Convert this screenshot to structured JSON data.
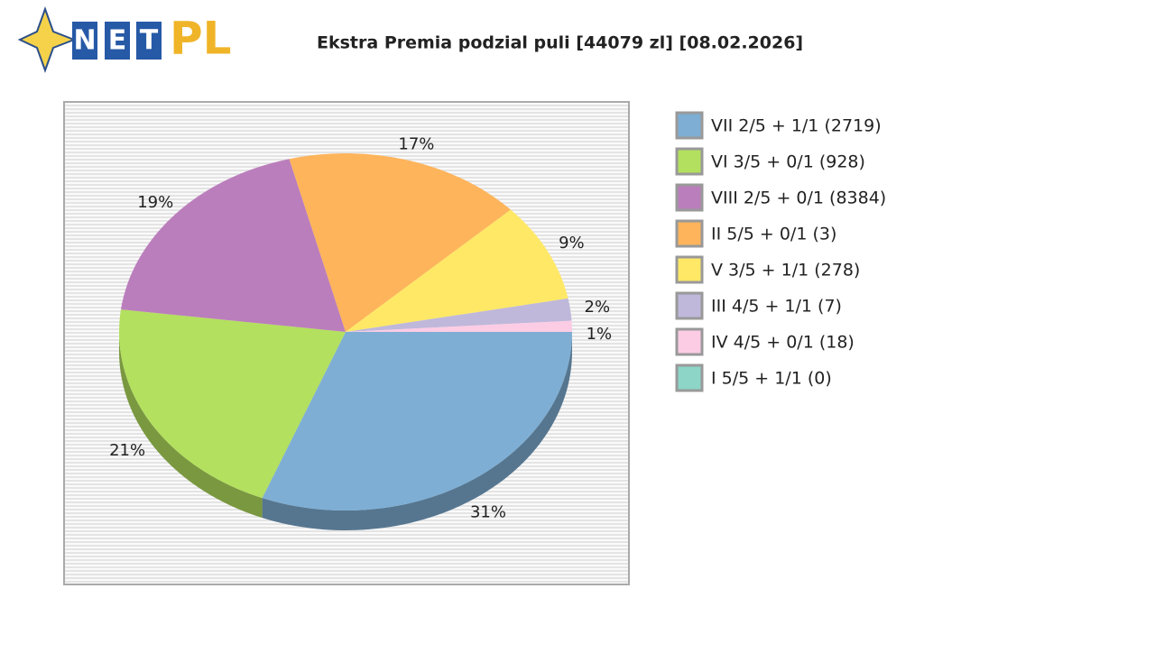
{
  "logo": {
    "letters": [
      "N",
      "E",
      "T"
    ],
    "suffix": "PL"
  },
  "chart_data": {
    "type": "pie",
    "title": "Ekstra Premia podzial puli [44079 zl] [08.02.2026]",
    "categories": [
      "VII 2/5 + 1/1 (2719)",
      "VI 3/5 + 0/1 (928)",
      "VIII 2/5 + 0/1 (8384)",
      "II 5/5 + 0/1 (3)",
      "V 3/5 + 1/1 (278)",
      "III 4/5 + 1/1 (7)",
      "IV 4/5 + 0/1 (18)",
      "I 5/5 + 1/1 (0)"
    ],
    "values": [
      31,
      21,
      19,
      17,
      9,
      2,
      1,
      0
    ],
    "value_labels": [
      "31%",
      "21%",
      "19%",
      "17%",
      "9%",
      "2%",
      "1%",
      null
    ],
    "colors": [
      "#7eaed4",
      "#b3e05e",
      "#bb7ebc",
      "#fdb45b",
      "#ffe866",
      "#bfb8da",
      "#fccce5",
      "#8cd5c7"
    ]
  }
}
